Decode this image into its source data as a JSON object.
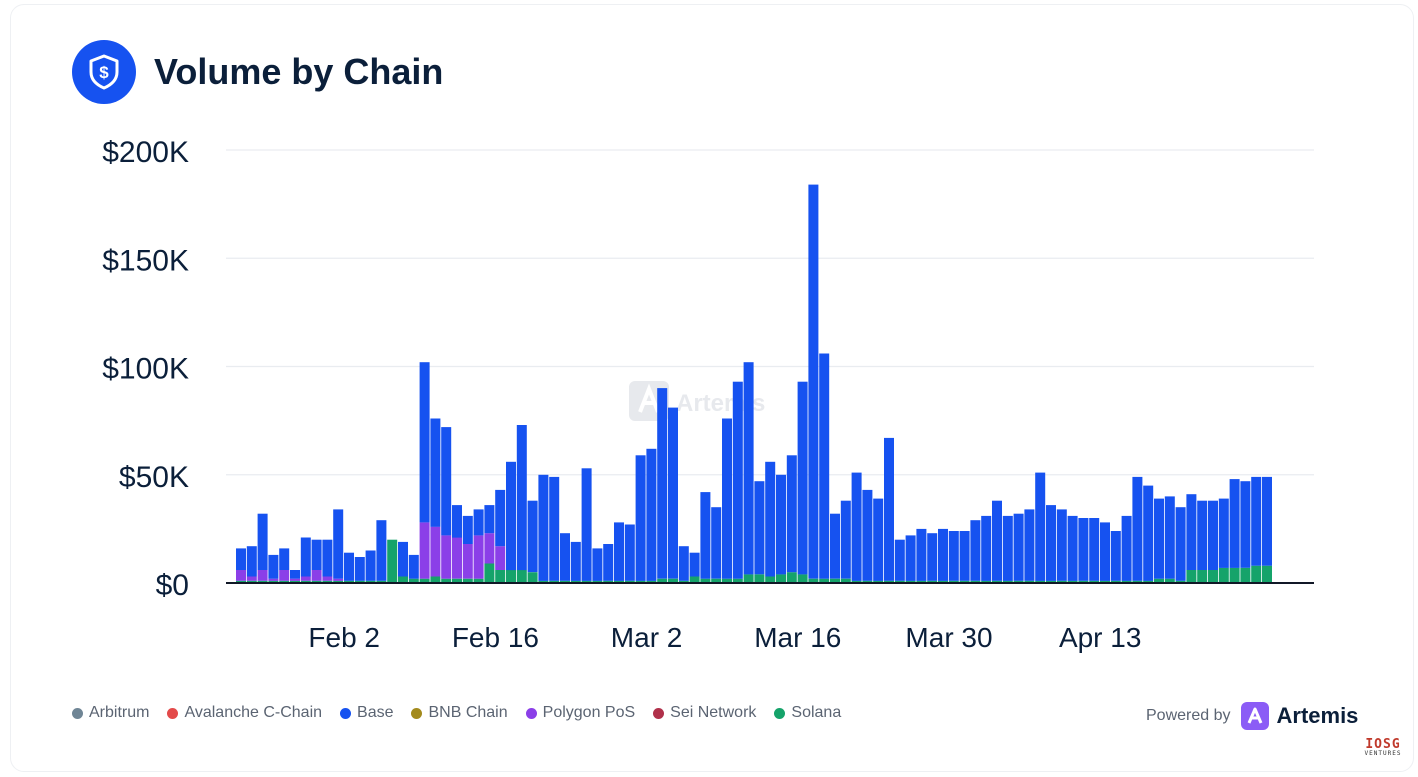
{
  "card": {
    "title": "Volume by Chain",
    "icon": "dollar-shield-icon"
  },
  "powered_by": {
    "label": "Powered by",
    "brand": "Artemis",
    "icon": "artemis-logo-icon"
  },
  "watermark": {
    "text": "Artemis"
  },
  "corner_mark": {
    "text": "IOSG",
    "subtext": "VENTURES"
  },
  "colors": {
    "accent": "#1652f0",
    "polygon": "#8b3fe8",
    "solana": "#15a36a",
    "watermark": "#e7e9ed"
  },
  "chart_data": {
    "type": "bar",
    "stacked": true,
    "title": "Volume by Chain",
    "y_ticks": [
      "$0",
      "$50K",
      "$100K",
      "$150K",
      "$200K"
    ],
    "ylim": [
      0,
      200000
    ],
    "x_tick_labels": [
      "Feb 2",
      "Feb 16",
      "Mar 2",
      "Mar 16",
      "Mar 30",
      "Apr 13"
    ],
    "x_tick_positions": [
      9,
      23,
      37,
      51,
      65,
      79
    ],
    "grid": true,
    "legend_position": "bottom-left",
    "legend": [
      {
        "name": "Arbitrum",
        "color": "#6f8595"
      },
      {
        "name": "Avalanche C-Chain",
        "color": "#e34a4a"
      },
      {
        "name": "Base",
        "color": "#1652f0"
      },
      {
        "name": "BNB Chain",
        "color": "#a38a1c"
      },
      {
        "name": "Polygon PoS",
        "color": "#8b3fe8"
      },
      {
        "name": "Sei Network",
        "color": "#b0304a"
      },
      {
        "name": "Solana",
        "color": "#15a36a"
      }
    ],
    "series": [
      {
        "name": "Solana",
        "color": "#15a36a",
        "values": [
          1000,
          1000,
          1000,
          1000,
          1000,
          1000,
          1000,
          1000,
          1000,
          1000,
          1000,
          1000,
          1000,
          1000,
          20000,
          3000,
          2000,
          2000,
          3000,
          2000,
          2000,
          2000,
          2000,
          9000,
          6000,
          6000,
          6000,
          5000,
          1000,
          1000,
          1000,
          1000,
          1000,
          1000,
          1000,
          1000,
          1000,
          1000,
          1000,
          2000,
          2000,
          1000,
          3000,
          2000,
          2000,
          2000,
          2000,
          4000,
          4000,
          3000,
          4000,
          5000,
          4000,
          2000,
          2000,
          2000,
          2000,
          1000,
          1000,
          1000,
          1000,
          1000,
          1000,
          1000,
          1000,
          1000,
          1000,
          1000,
          1000,
          1000,
          1000,
          1000,
          1000,
          1000,
          1000,
          1000,
          1000,
          1000,
          1000,
          1000,
          1000,
          1000,
          1000,
          1000,
          1000,
          2000,
          2000,
          1000,
          6000,
          6000,
          6000,
          7000,
          7000,
          7000,
          8000,
          8000
        ]
      },
      {
        "name": "Polygon PoS",
        "color": "#8b3fe8",
        "values": [
          5000,
          2000,
          5000,
          1000,
          5000,
          1000,
          2000,
          5000,
          2000,
          1000,
          0,
          0,
          0,
          0,
          0,
          0,
          0,
          26000,
          23000,
          20000,
          19000,
          16000,
          20000,
          14000,
          11000,
          0,
          0,
          0,
          0,
          0,
          0,
          0,
          0,
          0,
          0,
          0,
          0,
          0,
          0,
          0,
          0,
          0,
          0,
          0,
          0,
          0,
          0,
          0,
          0,
          0,
          0,
          0,
          0,
          0,
          0,
          0,
          0,
          0,
          0,
          0,
          0,
          0,
          0,
          0,
          0,
          0,
          0,
          0,
          0,
          0,
          0,
          0,
          0,
          0,
          0,
          0,
          0,
          0,
          0,
          0,
          0,
          0,
          0,
          0,
          0,
          0,
          0,
          0,
          0,
          0,
          0,
          0,
          0,
          0,
          0,
          0
        ]
      },
      {
        "name": "Base",
        "color": "#1652f0",
        "values": [
          10000,
          14000,
          26000,
          11000,
          10000,
          4000,
          18000,
          14000,
          17000,
          32000,
          13000,
          11000,
          14000,
          28000,
          0,
          16000,
          11000,
          74000,
          50000,
          50000,
          15000,
          13000,
          12000,
          13000,
          26000,
          50000,
          67000,
          33000,
          49000,
          48000,
          22000,
          18000,
          52000,
          15000,
          17000,
          27000,
          26000,
          58000,
          61000,
          88000,
          79000,
          16000,
          11000,
          40000,
          33000,
          74000,
          91000,
          98000,
          43000,
          53000,
          46000,
          54000,
          89000,
          182000,
          104000,
          30000,
          36000,
          50000,
          42000,
          38000,
          66000,
          19000,
          21000,
          24000,
          22000,
          24000,
          23000,
          23000,
          28000,
          30000,
          37000,
          30000,
          31000,
          33000,
          50000,
          35000,
          33000,
          30000,
          29000,
          29000,
          27000,
          23000,
          30000,
          48000,
          44000,
          37000,
          38000,
          34000,
          35000,
          32000,
          32000,
          32000,
          41000,
          40000,
          41000,
          41000
        ]
      }
    ]
  }
}
